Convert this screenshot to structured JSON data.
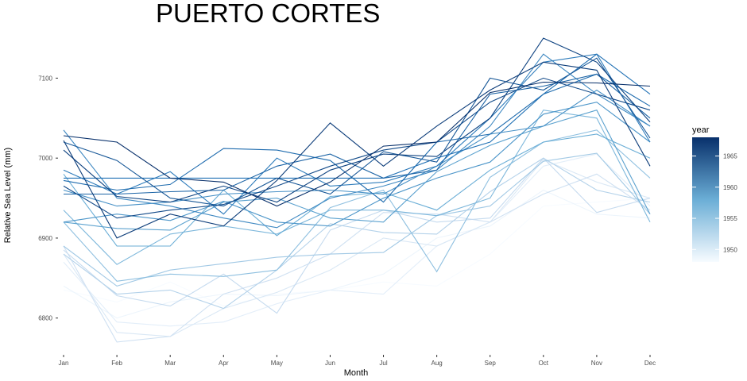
{
  "chart_data": {
    "type": "line",
    "title": "PUERTO CORTES",
    "xlabel": "Month",
    "ylabel": "Relative Sea Level (mm)",
    "categories": [
      "Jan",
      "Feb",
      "Mar",
      "Apr",
      "May",
      "Jun",
      "Jul",
      "Aug",
      "Sep",
      "Oct",
      "Nov",
      "Dec"
    ],
    "ylim": [
      6758,
      7158
    ],
    "yticks": [
      6800,
      6900,
      7000,
      7100
    ],
    "grid": false,
    "color_scale": {
      "name": "year",
      "range": [
        1948,
        1968
      ],
      "ticks": [
        1950,
        1955,
        1960,
        1965
      ],
      "low_color": "#f7fbff",
      "high_color": "#08306b"
    },
    "series": [
      {
        "year": 1948,
        "values": [
          6835,
          6820,
          6845,
          6815,
          6830,
          6835,
          6845,
          6840,
          6880,
          6940,
          6945,
          6950
        ]
      },
      {
        "year": 1949,
        "values": [
          6840,
          6800,
          6820,
          6830,
          6828,
          6835,
          6855,
          6900,
          6915,
          6960,
          6930,
          6925
        ]
      },
      {
        "year": 1950,
        "values": [
          6870,
          6795,
          6790,
          6795,
          6818,
          6835,
          6830,
          6890,
          6920,
          6990,
          7005,
          6940
        ]
      },
      {
        "year": 1951,
        "values": [
          6880,
          6782,
          6777,
          6812,
          6832,
          6860,
          6900,
          6890,
          6920,
          6998,
          6970,
          6950
        ]
      },
      {
        "year": 1952,
        "values": [
          6890,
          6770,
          6777,
          6830,
          6850,
          6880,
          6932,
          6930,
          6920,
          6955,
          6980,
          6935
        ]
      },
      {
        "year": 1953,
        "values": [
          6885,
          6828,
          6815,
          6855,
          6806,
          6910,
          6935,
          6920,
          6925,
          7000,
          6932,
          6950
        ]
      },
      {
        "year": 1954,
        "values": [
          6880,
          6830,
          6835,
          6812,
          6860,
          6918,
          6907,
          6905,
          6958,
          7000,
          6960,
          6945
        ]
      },
      {
        "year": 1955,
        "values": [
          6890,
          6840,
          6860,
          6868,
          6876,
          6880,
          6882,
          6928,
          6940,
          6996,
          7006,
          6930
        ]
      },
      {
        "year": 1956,
        "values": [
          6920,
          6846,
          6855,
          6852,
          6860,
          6938,
          6960,
          6858,
          6976,
          7020,
          7035,
          6975
        ]
      },
      {
        "year": 1957,
        "values": [
          6935,
          6867,
          6905,
          6915,
          6905,
          6935,
          6935,
          6928,
          6950,
          7060,
          7050,
          6920
        ]
      },
      {
        "year": 1958,
        "values": [
          6980,
          6890,
          6890,
          6960,
          6903,
          6952,
          6957,
          6935,
          6985,
          7020,
          7030,
          7000
        ]
      },
      {
        "year": 1959,
        "values": [
          6920,
          6912,
          6910,
          6945,
          6950,
          6925,
          6920,
          6983,
          7016,
          7040,
          7060,
          6930
        ]
      },
      {
        "year": 1960,
        "values": [
          6920,
          6930,
          6922,
          6946,
          6920,
          6915,
          6950,
          6975,
          6995,
          7055,
          7070,
          7020
        ]
      },
      {
        "year": 1960.5,
        "values": [
          6960,
          6940,
          6945,
          6955,
          6958,
          6960,
          6955,
          6990,
          7030,
          7040,
          7085,
          7040
        ]
      },
      {
        "year": 1961,
        "values": [
          7035,
          6950,
          6940,
          6925,
          6913,
          6950,
          6965,
          6985,
          7040,
          7130,
          7080,
          7040
        ]
      },
      {
        "year": 1962,
        "values": [
          6985,
          6955,
          6983,
          6930,
          7000,
          6965,
          6970,
          6990,
          7050,
          7120,
          7130,
          7020
        ]
      },
      {
        "year": 1963,
        "values": [
          6975,
          6975,
          6975,
          6975,
          6975,
          6975,
          6975,
          7000,
          7020,
          7080,
          7130,
          7080
        ]
      },
      {
        "year": 1963.5,
        "values": [
          6972,
          6960,
          6967,
          7012,
          7010,
          6997,
          6945,
          7020,
          7030,
          7080,
          7105,
          7065
        ]
      },
      {
        "year": 1964,
        "values": [
          6955,
          6955,
          6958,
          6960,
          6990,
          7005,
          6975,
          6985,
          7080,
          7090,
          7105,
          7050
        ]
      },
      {
        "year": 1965,
        "values": [
          7020,
          6997,
          6950,
          6940,
          6975,
          6955,
          7008,
          6995,
          7100,
          7085,
          7125,
          7025
        ]
      },
      {
        "year": 1966,
        "values": [
          6965,
          6925,
          6935,
          6942,
          6965,
          6990,
          7010,
          7020,
          7070,
          7100,
          7080,
          7060
        ]
      },
      {
        "year": 1966.5,
        "values": [
          7010,
          6952,
          6945,
          6965,
          6945,
          6985,
          7005,
          7002,
          7050,
          7150,
          7120,
          7045
        ]
      },
      {
        "year": 1967,
        "values": [
          7022,
          6900,
          6930,
          6915,
          6972,
          7044,
          6990,
          7040,
          7085,
          7120,
          7110,
          6990
        ]
      },
      {
        "year": 1968,
        "values": [
          7028,
          7020,
          6975,
          6970,
          6940,
          6970,
          7015,
          7020,
          7082,
          7095,
          7094,
          7090
        ]
      }
    ]
  }
}
